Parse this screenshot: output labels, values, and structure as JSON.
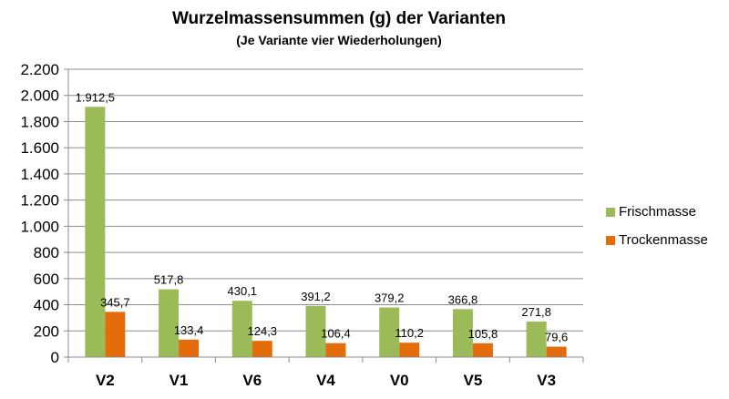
{
  "chart_data": {
    "type": "bar",
    "title": "Wurzelmassensummen (g) der Varianten",
    "subtitle": "(Je Variante vier Wiederholungen)",
    "categories": [
      "V2",
      "V1",
      "V6",
      "V4",
      "V0",
      "V5",
      "V3"
    ],
    "series": [
      {
        "name": "Frischmasse",
        "color": "#9bbb59",
        "values": [
          1912.5,
          517.8,
          430.1,
          391.2,
          379.2,
          366.8,
          271.8
        ],
        "labels": [
          "1.912,5",
          "517,8",
          "430,1",
          "391,2",
          "379,2",
          "366,8",
          "271,8"
        ]
      },
      {
        "name": "Trockenmasse",
        "color": "#e46c0a",
        "values": [
          345.7,
          133.4,
          124.3,
          106.4,
          110.2,
          105.8,
          79.6
        ],
        "labels": [
          "345,7",
          "133,4",
          "124,3",
          "106,4",
          "110,2",
          "105,8",
          "79,6"
        ]
      }
    ],
    "ylim": [
      0,
      2200
    ],
    "yticks": [
      0,
      200,
      400,
      600,
      800,
      1000,
      1200,
      1400,
      1600,
      1800,
      2000,
      2200
    ],
    "ytick_labels": [
      "0",
      "200",
      "400",
      "600",
      "800",
      "1.000",
      "1.200",
      "1.400",
      "1.600",
      "1.800",
      "2.000",
      "2.200"
    ],
    "grid": true,
    "legend_position": "right"
  }
}
